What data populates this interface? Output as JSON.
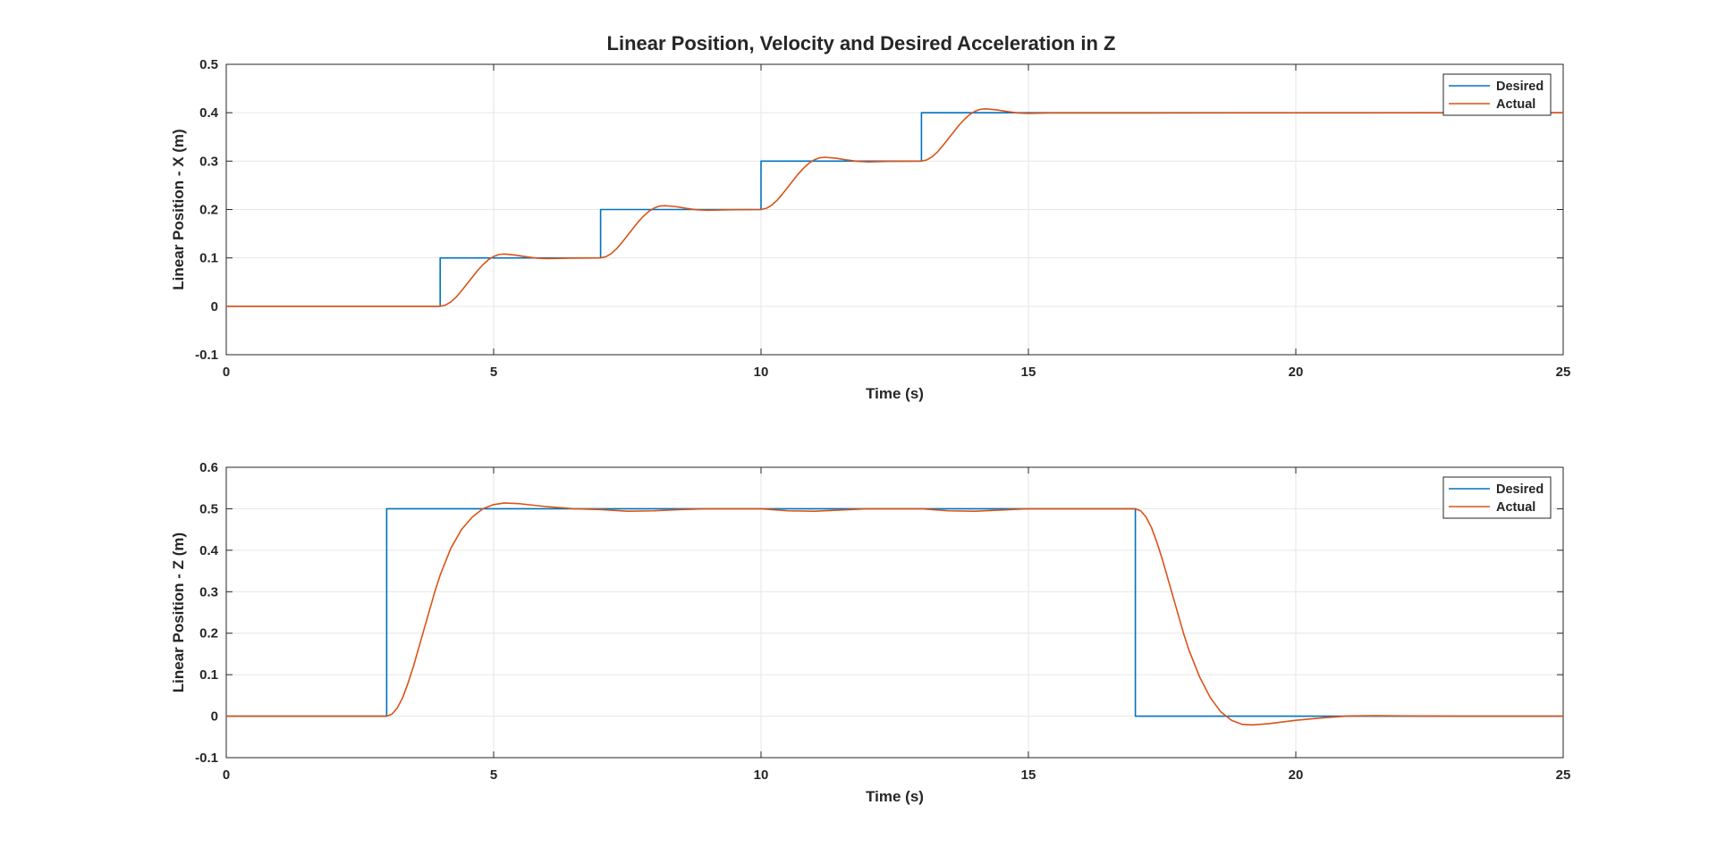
{
  "figure": {
    "title": "Linear Position, Velocity and Desired Acceleration in Z"
  },
  "colors": {
    "desired": "#0072BD",
    "actual": "#D95319",
    "grid": "#e6e6e6",
    "axis": "#262626",
    "background": "#ffffff"
  },
  "chart_data": [
    {
      "type": "line",
      "title": "Linear Position, Velocity and Desired Acceleration in Z",
      "xlabel": "Time (s)",
      "ylabel": "Linear Position - X (m)",
      "xlim": [
        0,
        25
      ],
      "ylim": [
        -0.1,
        0.5
      ],
      "xticks": [
        0,
        5,
        10,
        15,
        20,
        25
      ],
      "yticks": [
        -0.1,
        0,
        0.1,
        0.2,
        0.3,
        0.4,
        0.5
      ],
      "xtick_labels": [
        "0",
        "5",
        "10",
        "15",
        "20",
        "25"
      ],
      "ytick_labels": [
        "-0.1",
        "0",
        "0.1",
        "0.2",
        "0.3",
        "0.4",
        "0.5"
      ],
      "grid": true,
      "legend": {
        "position": "top-right",
        "entries": [
          "Desired",
          "Actual"
        ]
      },
      "series": [
        {
          "name": "Desired",
          "x": [
            0,
            4,
            4,
            7,
            7,
            10,
            10,
            13,
            13,
            25
          ],
          "y": [
            0,
            0,
            0.1,
            0.1,
            0.2,
            0.2,
            0.3,
            0.3,
            0.4,
            0.4
          ]
        },
        {
          "name": "Actual",
          "x": [
            0,
            4,
            4.1,
            4.2,
            4.3,
            4.4,
            4.5,
            4.6,
            4.7,
            4.8,
            4.9,
            5.0,
            5.1,
            5.2,
            5.4,
            5.6,
            5.8,
            6.0,
            6.4,
            7.0,
            7.1,
            7.2,
            7.3,
            7.4,
            7.5,
            7.6,
            7.7,
            7.8,
            7.9,
            8.0,
            8.1,
            8.2,
            8.4,
            8.6,
            8.8,
            9.0,
            9.4,
            10.0,
            10.1,
            10.2,
            10.3,
            10.4,
            10.5,
            10.6,
            10.7,
            10.8,
            10.9,
            11.0,
            11.1,
            11.2,
            11.4,
            11.6,
            11.8,
            12.0,
            12.4,
            13.0,
            13.1,
            13.2,
            13.3,
            13.4,
            13.5,
            13.6,
            13.7,
            13.8,
            13.9,
            14.0,
            14.1,
            14.2,
            14.4,
            14.6,
            14.8,
            15.0,
            15.4,
            25
          ],
          "y": [
            0,
            0,
            0.0025,
            0.009,
            0.019,
            0.032,
            0.046,
            0.06,
            0.074,
            0.086,
            0.096,
            0.103,
            0.107,
            0.108,
            0.106,
            0.1025,
            0.0995,
            0.0985,
            0.0995,
            0.1,
            0.1025,
            0.109,
            0.119,
            0.132,
            0.146,
            0.16,
            0.174,
            0.186,
            0.196,
            0.203,
            0.207,
            0.208,
            0.206,
            0.2025,
            0.1995,
            0.1985,
            0.1995,
            0.2,
            0.2025,
            0.209,
            0.219,
            0.232,
            0.246,
            0.26,
            0.274,
            0.286,
            0.296,
            0.303,
            0.307,
            0.308,
            0.306,
            0.3025,
            0.2995,
            0.2985,
            0.2995,
            0.3,
            0.3025,
            0.309,
            0.319,
            0.332,
            0.346,
            0.36,
            0.374,
            0.386,
            0.396,
            0.403,
            0.407,
            0.408,
            0.406,
            0.4025,
            0.3995,
            0.3985,
            0.3995,
            0.4
          ]
        }
      ]
    },
    {
      "type": "line",
      "xlabel": "Time (s)",
      "ylabel": "Linear Position - Z (m)",
      "xlim": [
        0,
        25
      ],
      "ylim": [
        -0.1,
        0.6
      ],
      "xticks": [
        0,
        5,
        10,
        15,
        20,
        25
      ],
      "yticks": [
        -0.1,
        0,
        0.1,
        0.2,
        0.3,
        0.4,
        0.5,
        0.6
      ],
      "xtick_labels": [
        "0",
        "5",
        "10",
        "15",
        "20",
        "25"
      ],
      "ytick_labels": [
        "-0.1",
        "0",
        "0.1",
        "0.2",
        "0.3",
        "0.4",
        "0.5",
        "0.6"
      ],
      "grid": true,
      "legend": {
        "position": "top-right",
        "entries": [
          "Desired",
          "Actual"
        ]
      },
      "series": [
        {
          "name": "Desired",
          "x": [
            0,
            3,
            3,
            17,
            17,
            25
          ],
          "y": [
            0,
            0,
            0.5,
            0.5,
            0,
            0
          ]
        },
        {
          "name": "Actual",
          "x": [
            0,
            3,
            3.1,
            3.2,
            3.3,
            3.4,
            3.5,
            3.6,
            3.7,
            3.8,
            3.9,
            4.0,
            4.2,
            4.4,
            4.6,
            4.8,
            5.0,
            5.2,
            5.5,
            6.0,
            6.5,
            7.0,
            7.5,
            8.0,
            8.5,
            9.0,
            9.5,
            10.0,
            10.5,
            11.0,
            11.5,
            12.0,
            12.5,
            13.0,
            13.5,
            14.0,
            14.5,
            15.0,
            16.0,
            17.0,
            17.1,
            17.2,
            17.3,
            17.4,
            17.5,
            17.6,
            17.7,
            17.8,
            17.9,
            18.0,
            18.2,
            18.4,
            18.6,
            18.8,
            19.0,
            19.2,
            19.5,
            20.0,
            20.5,
            21.0,
            21.5,
            22.0,
            23.0,
            25
          ],
          "y": [
            0,
            0,
            0.005,
            0.02,
            0.045,
            0.08,
            0.12,
            0.165,
            0.21,
            0.255,
            0.3,
            0.34,
            0.405,
            0.45,
            0.48,
            0.5,
            0.51,
            0.514,
            0.512,
            0.505,
            0.5,
            0.498,
            0.494,
            0.495,
            0.498,
            0.5,
            0.5,
            0.5,
            0.495,
            0.494,
            0.497,
            0.5,
            0.5,
            0.5,
            0.495,
            0.494,
            0.497,
            0.5,
            0.5,
            0.5,
            0.495,
            0.48,
            0.455,
            0.42,
            0.38,
            0.335,
            0.29,
            0.245,
            0.2,
            0.16,
            0.095,
            0.045,
            0.01,
            -0.01,
            -0.02,
            -0.021,
            -0.018,
            -0.01,
            -0.004,
            0.0005,
            0.001,
            0.0005,
            0,
            0
          ]
        }
      ]
    }
  ]
}
